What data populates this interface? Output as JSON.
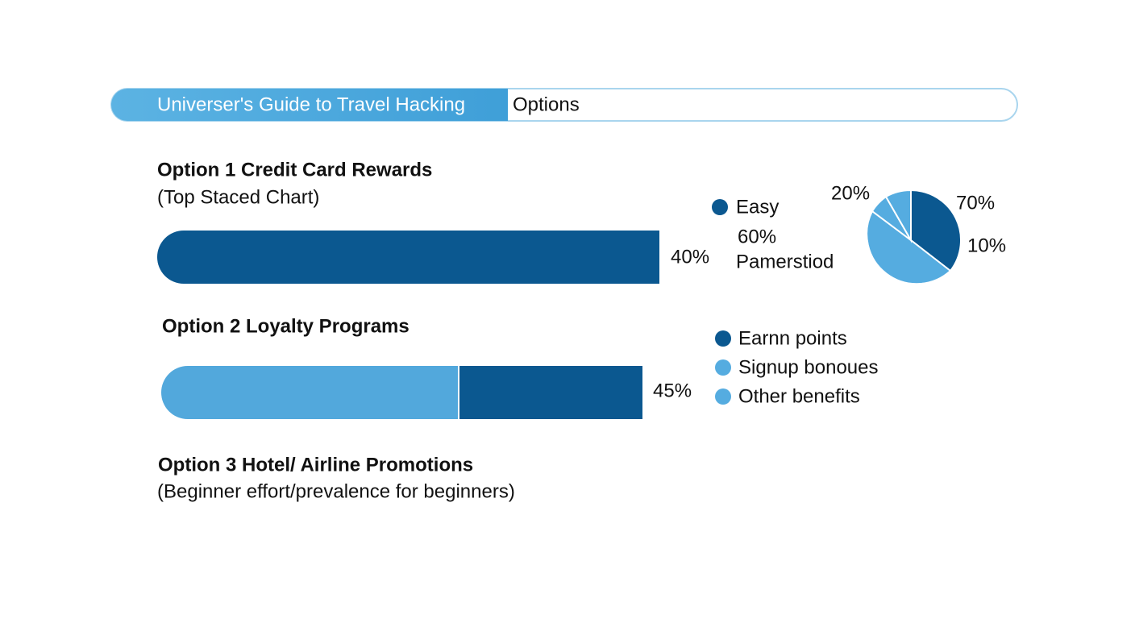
{
  "header": {
    "title": "Universer's Guide to Travel Hacking",
    "tab": "Options"
  },
  "option1": {
    "title": "Option 1 Credit Card Rewards",
    "subtitle": "(Top Staced Chart)",
    "bar_label": "40%",
    "legend": {
      "item": "Easy",
      "value": "60%",
      "note": "Pamerstiod"
    },
    "pie_labels": [
      "20%",
      "70%",
      "10%"
    ]
  },
  "option2": {
    "title": "Option 2 Loyalty Programs",
    "bar_label": "45%",
    "legend": [
      "Earnn points",
      "Signup bonoues",
      "Other benefits"
    ]
  },
  "option3": {
    "title": "Option 3 Hotel/ Airline Promotions",
    "subtitle": "(Beginner effort/prevalence for beginners)"
  }
}
